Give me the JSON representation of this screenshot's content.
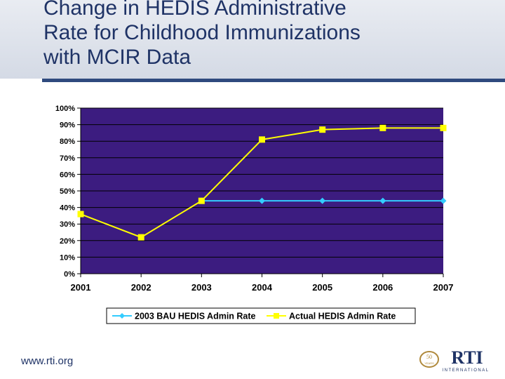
{
  "title_lines": [
    "Change in HEDIS Administrative",
    "Rate for Childhood Immunizations",
    "with MCIR Data"
  ],
  "footer": {
    "url": "www.rti.org"
  },
  "logo": {
    "text": "RTI",
    "subtext": "INTERNATIONAL",
    "anniversary": "50 YEARS"
  },
  "colors": {
    "plot_bg": "#3c1c80",
    "series1": "#33ccff",
    "series2": "#ffff00",
    "title": "#1f3366"
  },
  "chart_data": {
    "type": "line",
    "title": "",
    "xlabel": "",
    "ylabel": "",
    "categories": [
      "2001",
      "2002",
      "2003",
      "2004",
      "2005",
      "2006",
      "2007"
    ],
    "ylim": [
      0,
      100
    ],
    "yticks": [
      "0%",
      "10%",
      "20%",
      "30%",
      "40%",
      "50%",
      "60%",
      "70%",
      "80%",
      "90%",
      "100%"
    ],
    "grid": true,
    "legend_position": "bottom",
    "series": [
      {
        "name": "2003 BAU HEDIS Admin Rate",
        "marker": "diamond",
        "color": "#33ccff",
        "values": [
          null,
          null,
          44,
          44,
          44,
          44,
          44
        ]
      },
      {
        "name": "Actual HEDIS Admin Rate",
        "marker": "square",
        "color": "#ffff00",
        "values": [
          36,
          22,
          44,
          81,
          87,
          88,
          88
        ]
      }
    ]
  }
}
